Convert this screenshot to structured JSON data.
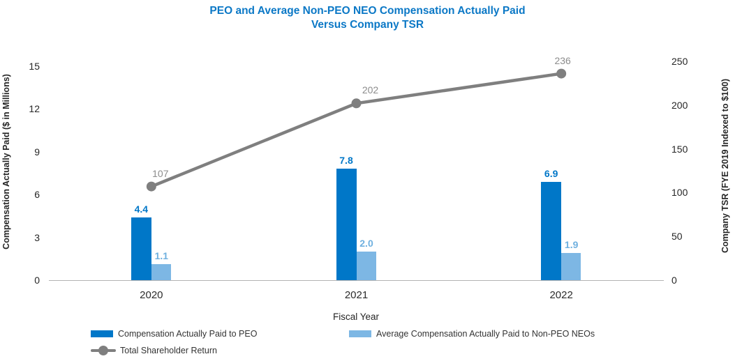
{
  "title": {
    "line1": "PEO and Average Non-PEO NEO Compensation Actually Paid",
    "line2": "Versus Company TSR"
  },
  "colors": {
    "title": "#0b78c6",
    "peo_bar": "#0077c8",
    "neo_bar": "#7db7e4",
    "neo_label": "#6fb0df",
    "tsr_line": "#7f7f7f",
    "tsr_label": "#8c8c8c",
    "axis_line": "#b3b3b3",
    "tick_text": "#262626"
  },
  "chart_data": {
    "type": "bar",
    "subtype": "grouped bars with overlay line, dual y-axes",
    "title": "PEO and Average Non-PEO NEO Compensation Actually Paid Versus Company TSR",
    "categories": [
      "2020",
      "2021",
      "2022"
    ],
    "series": [
      {
        "name": "Compensation Actually Paid to PEO",
        "type": "bar",
        "axis": "left",
        "values": [
          4.4,
          7.8,
          6.9
        ],
        "labels": [
          "4.4",
          "7.8",
          "6.9"
        ]
      },
      {
        "name": "Average Compensation Actually Paid to Non-PEO NEOs",
        "type": "bar",
        "axis": "left",
        "values": [
          1.1,
          2.0,
          1.9
        ],
        "labels": [
          "1.1",
          "2.0",
          "1.9"
        ]
      },
      {
        "name": "Total Shareholder Return",
        "type": "line",
        "axis": "right",
        "values": [
          107,
          202,
          236
        ],
        "labels": [
          "107",
          "202",
          "236"
        ]
      }
    ],
    "xlabel": "Fiscal Year",
    "left_axis": {
      "label": "Compensation Actually Paid ($ in Millions)",
      "ticks": [
        0,
        3,
        6,
        9,
        12,
        15
      ],
      "ylim": [
        0,
        15
      ]
    },
    "right_axis": {
      "label": "Company TSR (FYE 2019 Indexed to $100)",
      "ticks": [
        0,
        50,
        100,
        150,
        200,
        250
      ],
      "ylim": [
        0,
        250
      ]
    },
    "grid": false,
    "legend_position": "bottom-left, two rows"
  },
  "legend": {
    "peo": "Compensation Actually Paid to PEO",
    "neo": "Average Compensation Actually Paid to Non-PEO NEOs",
    "tsr": "Total Shareholder Return"
  }
}
